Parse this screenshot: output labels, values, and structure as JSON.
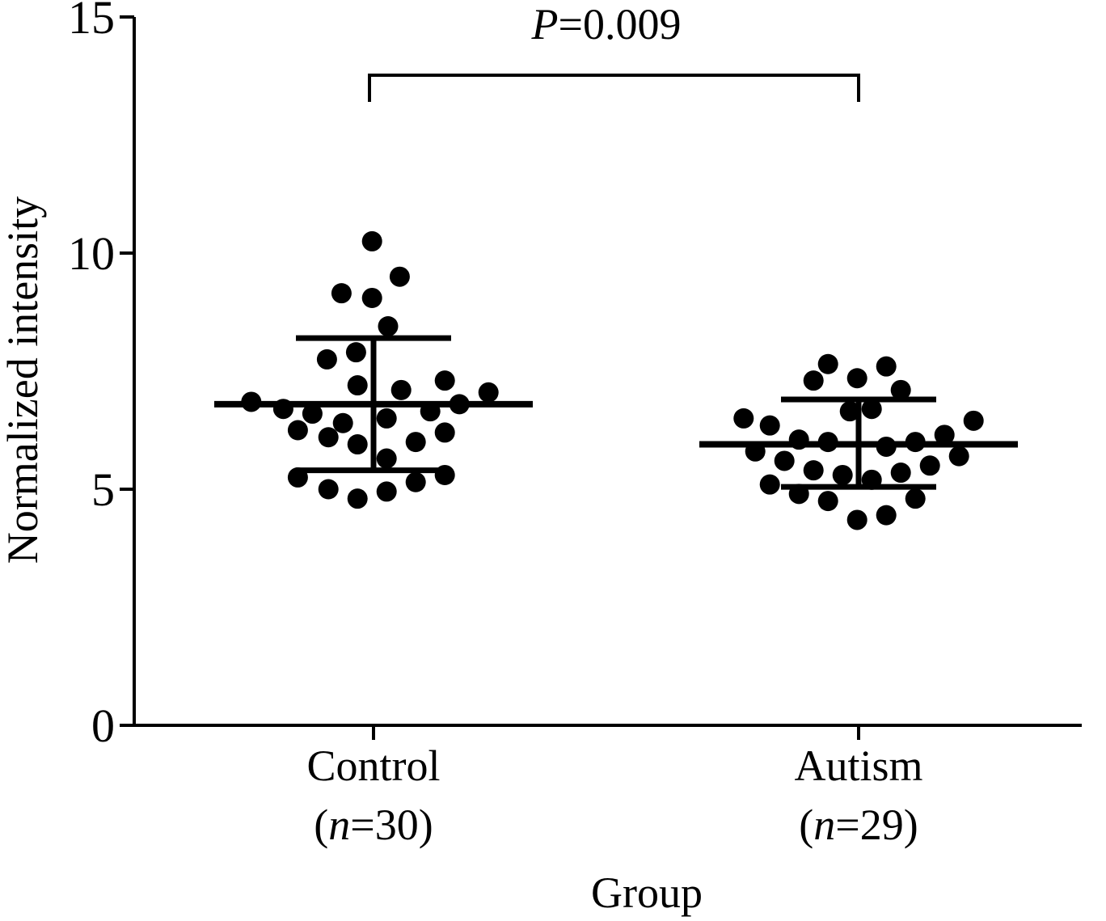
{
  "chart_data": {
    "type": "scatter",
    "xlabel": "Group",
    "ylabel": "Normalized intensity",
    "ylim": [
      0,
      15
    ],
    "yticks": [
      "0",
      "5",
      "10",
      "15"
    ],
    "grid": false,
    "categories": [
      {
        "name": "Control",
        "n_prefix": "(",
        "n_var": "n",
        "n_value": "=30)"
      },
      {
        "name": "Autism",
        "n_prefix": "(",
        "n_var": "n",
        "n_value": "=29)"
      }
    ],
    "annotation": {
      "p_var": "P",
      "p_value": "=0.009"
    },
    "series": [
      {
        "category": "Control",
        "mean": 6.8,
        "sd_upper": 8.2,
        "sd_lower": 5.4,
        "points": [
          {
            "y": 10.25,
            "j": -0.01
          },
          {
            "y": 9.5,
            "j": 0.18
          },
          {
            "y": 9.15,
            "j": -0.22
          },
          {
            "y": 9.05,
            "j": -0.01
          },
          {
            "y": 8.45,
            "j": 0.1
          },
          {
            "y": 7.9,
            "j": -0.12
          },
          {
            "y": 7.75,
            "j": -0.32
          },
          {
            "y": 7.3,
            "j": 0.49
          },
          {
            "y": 7.2,
            "j": -0.11
          },
          {
            "y": 7.1,
            "j": 0.19
          },
          {
            "y": 7.05,
            "j": 0.79
          },
          {
            "y": 6.85,
            "j": -0.84
          },
          {
            "y": 6.8,
            "j": 0.59
          },
          {
            "y": 6.7,
            "j": -0.62
          },
          {
            "y": 6.65,
            "j": 0.39
          },
          {
            "y": 6.6,
            "j": -0.42
          },
          {
            "y": 6.5,
            "j": 0.09
          },
          {
            "y": 6.4,
            "j": -0.21
          },
          {
            "y": 6.25,
            "j": -0.52
          },
          {
            "y": 6.2,
            "j": 0.49
          },
          {
            "y": 6.1,
            "j": -0.31
          },
          {
            "y": 6.0,
            "j": 0.29
          },
          {
            "y": 5.95,
            "j": -0.11
          },
          {
            "y": 5.65,
            "j": 0.09
          },
          {
            "y": 5.3,
            "j": 0.49
          },
          {
            "y": 5.25,
            "j": -0.52
          },
          {
            "y": 5.15,
            "j": 0.29
          },
          {
            "y": 5.0,
            "j": -0.31
          },
          {
            "y": 4.95,
            "j": 0.09
          },
          {
            "y": 4.8,
            "j": -0.11
          }
        ]
      },
      {
        "category": "Autism",
        "mean": 5.95,
        "sd_upper": 6.9,
        "sd_lower": 5.05,
        "points": [
          {
            "y": 7.65,
            "j": -0.21
          },
          {
            "y": 7.6,
            "j": 0.19
          },
          {
            "y": 7.35,
            "j": -0.01
          },
          {
            "y": 7.3,
            "j": -0.31
          },
          {
            "y": 7.1,
            "j": 0.29
          },
          {
            "y": 6.7,
            "j": 0.09
          },
          {
            "y": 6.65,
            "j": -0.06
          },
          {
            "y": 6.5,
            "j": -0.79
          },
          {
            "y": 6.45,
            "j": 0.79
          },
          {
            "y": 6.35,
            "j": -0.61
          },
          {
            "y": 6.15,
            "j": 0.59
          },
          {
            "y": 6.05,
            "j": -0.41
          },
          {
            "y": 6.0,
            "j": -0.21
          },
          {
            "y": 6.0,
            "j": 0.39
          },
          {
            "y": 5.9,
            "j": 0.19
          },
          {
            "y": 5.8,
            "j": -0.71
          },
          {
            "y": 5.7,
            "j": 0.69
          },
          {
            "y": 5.6,
            "j": -0.51
          },
          {
            "y": 5.5,
            "j": 0.49
          },
          {
            "y": 5.4,
            "j": -0.31
          },
          {
            "y": 5.35,
            "j": 0.29
          },
          {
            "y": 5.3,
            "j": -0.11
          },
          {
            "y": 5.2,
            "j": 0.09
          },
          {
            "y": 4.9,
            "j": -0.41
          },
          {
            "y": 4.8,
            "j": 0.39
          },
          {
            "y": 4.75,
            "j": -0.21
          },
          {
            "y": 4.45,
            "j": 0.19
          },
          {
            "y": 4.35,
            "j": -0.01
          },
          {
            "y": 5.1,
            "j": -0.61
          }
        ]
      }
    ]
  }
}
